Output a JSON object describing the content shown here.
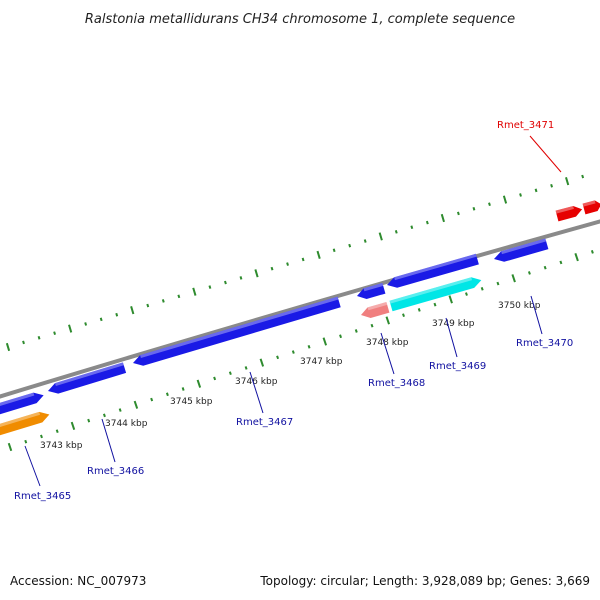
{
  "title": "Ralstonia metallidurans CH34 chromosome 1, complete sequence",
  "footer": {
    "accession": "Accession: NC_007973",
    "summary": "Topology: circular; Length: 3,928,089 bp; Genes: 3,669"
  },
  "ticks": [
    {
      "label": "3743 kbp"
    },
    {
      "label": "3744 kbp"
    },
    {
      "label": "3745 kbp"
    },
    {
      "label": "3746 kbp"
    },
    {
      "label": "3747 kbp"
    },
    {
      "label": "3748 kbp"
    },
    {
      "label": "3749 kbp"
    },
    {
      "label": "3750 kbp"
    }
  ],
  "genes": [
    {
      "name": "Rmet_3465",
      "color": "#f08c00"
    },
    {
      "name": "Rmet_3466",
      "color": "#1a1ae6"
    },
    {
      "name": "Rmet_3467",
      "color": "#1a1ae6"
    },
    {
      "name": "Rmet_3468",
      "color": "#f07f7f"
    },
    {
      "name": "Rmet_3469",
      "color": "#00e6e6"
    },
    {
      "name": "Rmet_3470",
      "color": "#1a1ae6"
    },
    {
      "name": "Rmet_3471",
      "color": "#e60000"
    }
  ],
  "colors": {
    "backbone": "#8a8a8a",
    "tick": "#2e8b2e",
    "label_line": "#1010a0",
    "label_line_red": "#e00000"
  }
}
